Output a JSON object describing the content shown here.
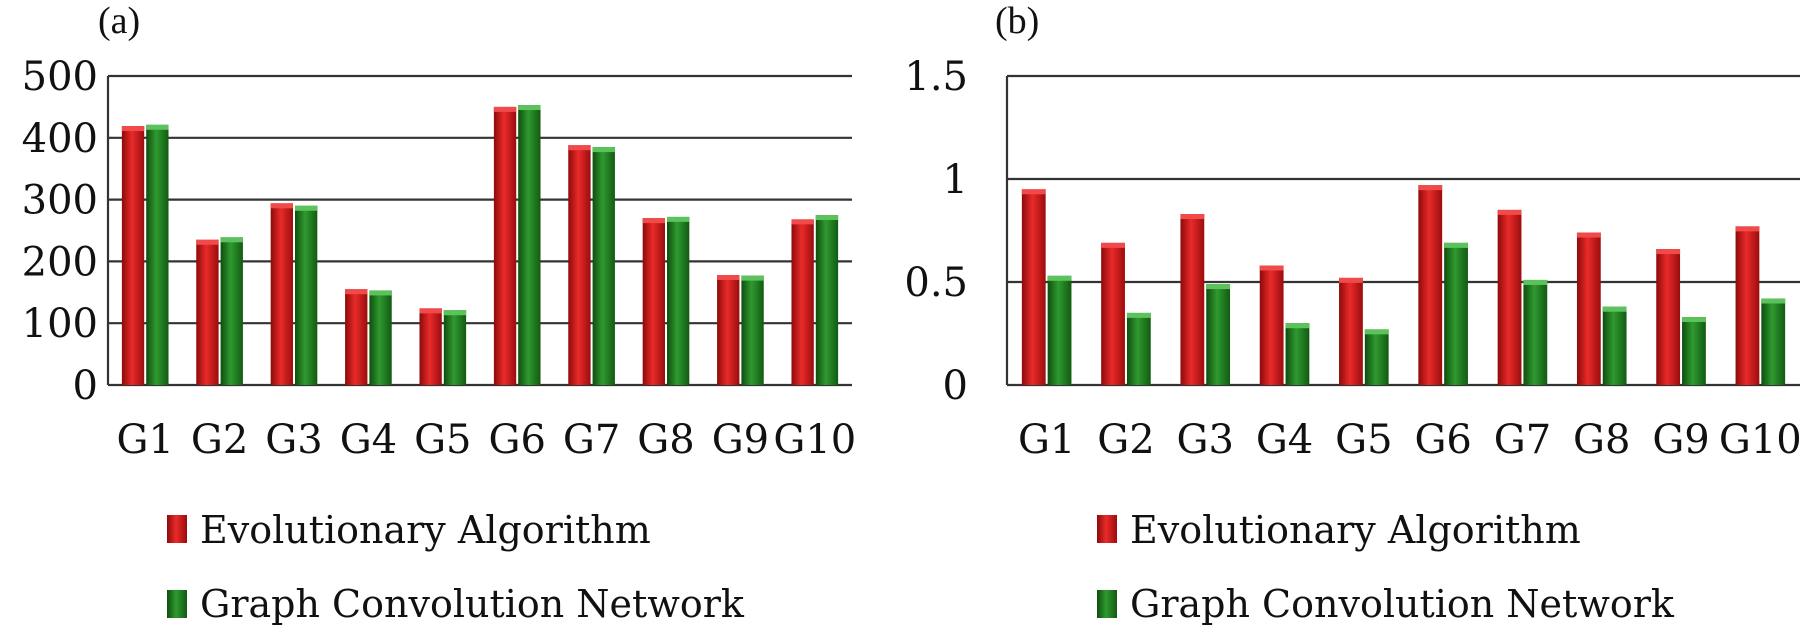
{
  "chart_data": [
    {
      "type": "bar",
      "panel_label": "(a)",
      "title": "",
      "xlabel": "",
      "ylabel": "",
      "categories": [
        "G1",
        "G2",
        "G3",
        "G4",
        "G5",
        "G6",
        "G7",
        "G8",
        "G9",
        "G10"
      ],
      "series": [
        {
          "name": "Evolutionary Algorithm",
          "color": "#d41a1a",
          "values": [
            419,
            235,
            294,
            155,
            124,
            450,
            388,
            270,
            178,
            268
          ]
        },
        {
          "name": "Graph Convolution Network",
          "color": "#1f7a1f",
          "values": [
            421,
            239,
            290,
            153,
            121,
            453,
            385,
            272,
            177,
            275
          ]
        }
      ],
      "ylim": [
        0,
        500
      ],
      "yticks": [
        "0",
        "100",
        "200",
        "300",
        "400",
        "500"
      ],
      "grid": true,
      "legend_position": "bottom"
    },
    {
      "type": "bar",
      "panel_label": "(b)",
      "title": "",
      "xlabel": "",
      "ylabel": "",
      "categories": [
        "G1",
        "G2",
        "G3",
        "G4",
        "G5",
        "G6",
        "G7",
        "G8",
        "G9",
        "G10"
      ],
      "series": [
        {
          "name": "Evolutionary Algorithm",
          "color": "#d41a1a",
          "values": [
            0.95,
            0.69,
            0.83,
            0.58,
            0.52,
            0.97,
            0.85,
            0.74,
            0.66,
            0.77
          ]
        },
        {
          "name": "Graph Convolution Network",
          "color": "#1f7a1f",
          "values": [
            0.53,
            0.35,
            0.49,
            0.3,
            0.27,
            0.69,
            0.51,
            0.38,
            0.33,
            0.42
          ]
        }
      ],
      "ylim": [
        0,
        1.5
      ],
      "yticks": [
        "0",
        "0.5",
        "1",
        "1.5"
      ],
      "grid": true,
      "legend_position": "bottom"
    }
  ]
}
